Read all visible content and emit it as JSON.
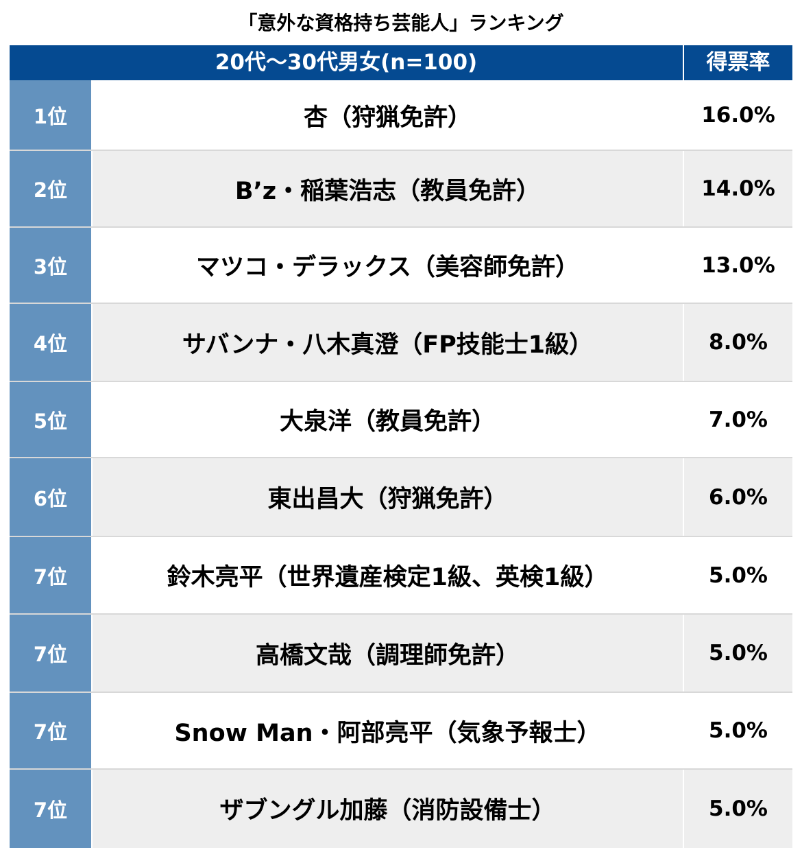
{
  "title": "「意外な資格持ち芸能人」ランキング",
  "colors": {
    "header": "#054a91",
    "rank_cell": "#6392be",
    "row_alt": "#eeeeee"
  },
  "chart_data": {
    "type": "table",
    "title": "「意外な資格持ち芸能人」ランキング",
    "columns": [
      "20代〜30代男女(n=100)",
      "得票率"
    ],
    "rows": [
      {
        "rank": "1位",
        "name": "杏（狩猟免許）",
        "rate": "16.0%",
        "value": 16.0
      },
      {
        "rank": "2位",
        "name": "B’z・稲葉浩志（教員免許）",
        "rate": "14.0%",
        "value": 14.0
      },
      {
        "rank": "3位",
        "name": "マツコ・デラックス（美容師免許）",
        "rate": "13.0%",
        "value": 13.0
      },
      {
        "rank": "4位",
        "name": "サバンナ・八木真澄（FP技能士1級）",
        "rate": "8.0%",
        "value": 8.0
      },
      {
        "rank": "5位",
        "name": "大泉洋（教員免許）",
        "rate": "7.0%",
        "value": 7.0
      },
      {
        "rank": "6位",
        "name": "東出昌大（狩猟免許）",
        "rate": "6.0%",
        "value": 6.0
      },
      {
        "rank": "7位",
        "name": "鈴木亮平（世界遺産検定1級、英検1級）",
        "rate": "5.0%",
        "value": 5.0
      },
      {
        "rank": "7位",
        "name": "高橋文哉（調理師免許）",
        "rate": "5.0%",
        "value": 5.0
      },
      {
        "rank": "7位",
        "name": "Snow Man・阿部亮平（気象予報士）",
        "rate": "5.0%",
        "value": 5.0
      },
      {
        "rank": "7位",
        "name": "ザブングル加藤（消防設備士）",
        "rate": "5.0%",
        "value": 5.0
      }
    ]
  }
}
